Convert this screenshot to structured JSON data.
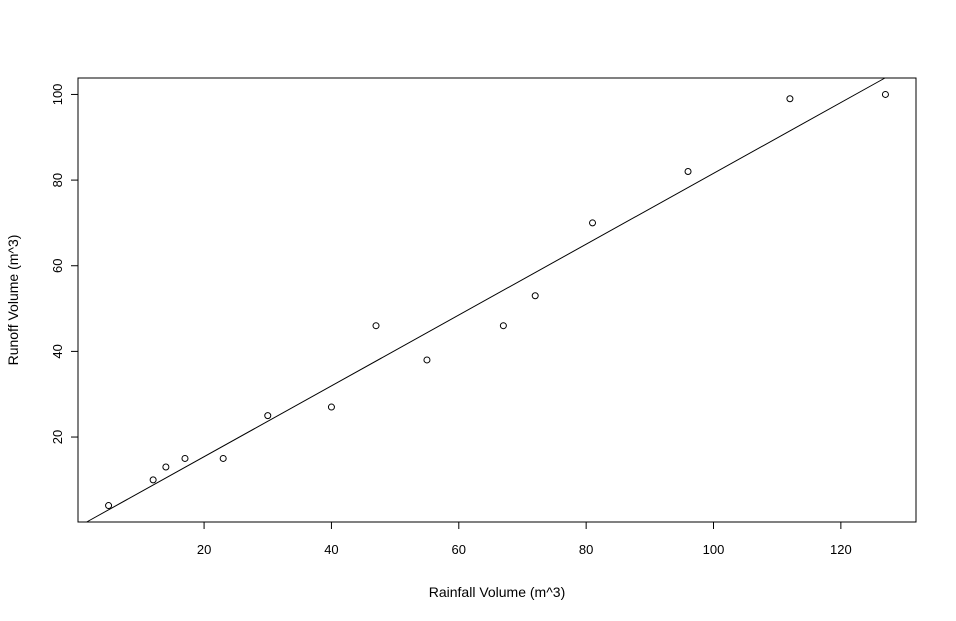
{
  "chart_data": {
    "type": "scatter",
    "title": "",
    "xlabel": "Rainfall Volume (m^3)",
    "ylabel": "Runoff Volume (m^3)",
    "xlim": [
      0.2,
      131.8
    ],
    "ylim": [
      0.16,
      103.84
    ],
    "xticks": [
      20,
      40,
      60,
      80,
      100,
      120
    ],
    "yticks": [
      20,
      40,
      60,
      80,
      100
    ],
    "xtick_labels": [
      "20",
      "40",
      "60",
      "80",
      "100",
      "120"
    ],
    "ytick_labels": [
      "20",
      "40",
      "60",
      "80",
      "100"
    ],
    "grid": false,
    "points": [
      {
        "x": 5,
        "y": 4
      },
      {
        "x": 12,
        "y": 10
      },
      {
        "x": 14,
        "y": 13
      },
      {
        "x": 17,
        "y": 15
      },
      {
        "x": 23,
        "y": 15
      },
      {
        "x": 30,
        "y": 25
      },
      {
        "x": 40,
        "y": 27
      },
      {
        "x": 47,
        "y": 46
      },
      {
        "x": 55,
        "y": 38
      },
      {
        "x": 67,
        "y": 46
      },
      {
        "x": 72,
        "y": 53
      },
      {
        "x": 81,
        "y": 70
      },
      {
        "x": 96,
        "y": 82
      },
      {
        "x": 112,
        "y": 99
      },
      {
        "x": 127,
        "y": 100
      }
    ],
    "fit_line": {
      "intercept": -1.13,
      "slope": 0.827
    }
  }
}
